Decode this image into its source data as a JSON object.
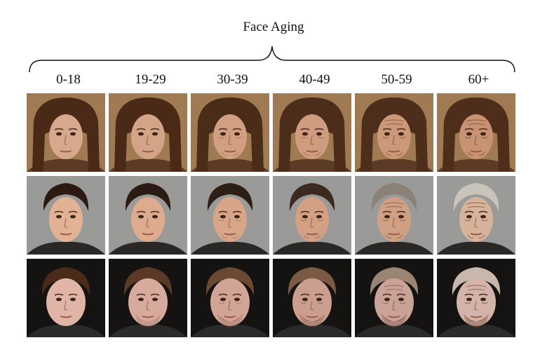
{
  "figure": {
    "title": "Face Aging",
    "age_groups": [
      "0-18",
      "19-29",
      "30-39",
      "40-49",
      "50-59",
      "60+"
    ]
  },
  "rows": [
    {
      "subject": "woman-long-brown-hair-bangs",
      "background": "#a07a52",
      "hair": [
        "#4a2a16",
        "#4a2a16",
        "#4b2c18",
        "#4c2d1a",
        "#4d2e1b",
        "#4e2e1b"
      ],
      "skin": [
        "#d7a98c",
        "#d4a487",
        "#d1a083",
        "#cf9c7f",
        "#cb9878",
        "#c89373"
      ],
      "aging": [
        0,
        0.15,
        0.3,
        0.5,
        0.7,
        0.9
      ]
    },
    {
      "subject": "man-dark-short-hair",
      "background": "#9a9a98",
      "hair": [
        "#2a1a12",
        "#2a1c14",
        "#2d1f16",
        "#3a2a20",
        "#8a8278",
        "#c8c4bc"
      ],
      "skin": [
        "#e2b294",
        "#ddab8e",
        "#d8a588",
        "#d3a084",
        "#d0a084",
        "#d7b39c"
      ],
      "aging": [
        0,
        0.15,
        0.3,
        0.5,
        0.7,
        0.9
      ]
    },
    {
      "subject": "man-round-face-dark-background",
      "background": "#151311",
      "hair": [
        "#4a2a18",
        "#5a3a26",
        "#6a4832",
        "#7a5a44",
        "#9a8474",
        "#c8b8ac"
      ],
      "skin": [
        "#e0b4a6",
        "#d8aa9e",
        "#d2a496",
        "#cc9e90",
        "#caa298",
        "#d3b3aa"
      ],
      "aging": [
        0,
        0.15,
        0.3,
        0.5,
        0.7,
        0.9
      ]
    }
  ]
}
